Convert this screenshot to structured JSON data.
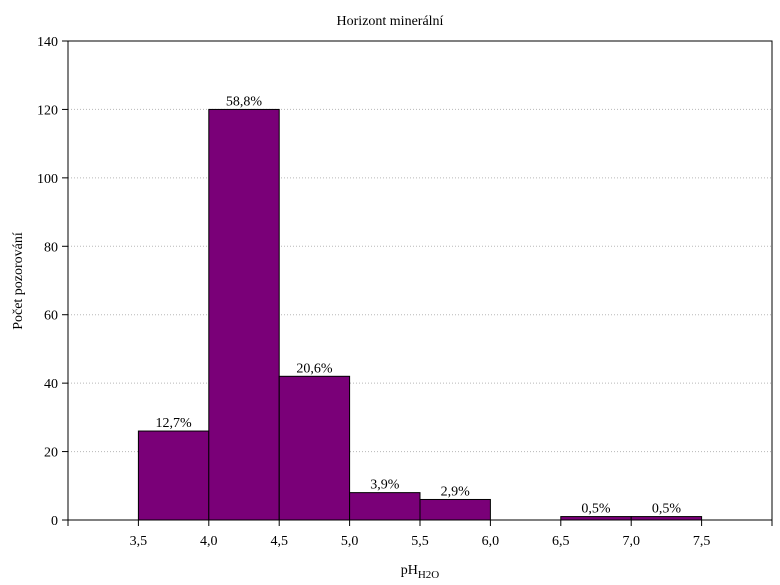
{
  "chart_data": {
    "type": "bar",
    "title": "Horizont minerální",
    "xlabel_main": "pH",
    "xlabel_sub": "H2O",
    "ylabel": "Počet pozorování",
    "ylim": [
      0,
      140
    ],
    "yticks": [
      "0",
      "20",
      "40",
      "60",
      "80",
      "100",
      "120",
      "140"
    ],
    "ytick_values": [
      0,
      20,
      40,
      60,
      80,
      100,
      120,
      140
    ],
    "xlim": [
      3.0,
      8.0
    ],
    "xticks": [
      "3,5",
      "4,0",
      "4,5",
      "5,0",
      "5,5",
      "6,0",
      "6,5",
      "7,0",
      "7,5"
    ],
    "xtick_values": [
      3.5,
      4.0,
      4.5,
      5.0,
      5.5,
      6.0,
      6.5,
      7.0,
      7.5
    ],
    "bins": [
      {
        "from": 3.5,
        "to": 4.0,
        "value": 26,
        "label": "12,7%"
      },
      {
        "from": 4.0,
        "to": 4.5,
        "value": 120,
        "label": "58,8%"
      },
      {
        "from": 4.5,
        "to": 5.0,
        "value": 42,
        "label": "20,6%"
      },
      {
        "from": 5.0,
        "to": 5.5,
        "value": 8,
        "label": "3,9%"
      },
      {
        "from": 5.5,
        "to": 6.0,
        "value": 6,
        "label": "2,9%"
      },
      {
        "from": 6.5,
        "to": 7.0,
        "value": 1,
        "label": "0,5%"
      },
      {
        "from": 7.0,
        "to": 7.5,
        "value": 1,
        "label": "0,5%"
      }
    ],
    "grid": true,
    "bar_color": "#7a0078"
  }
}
